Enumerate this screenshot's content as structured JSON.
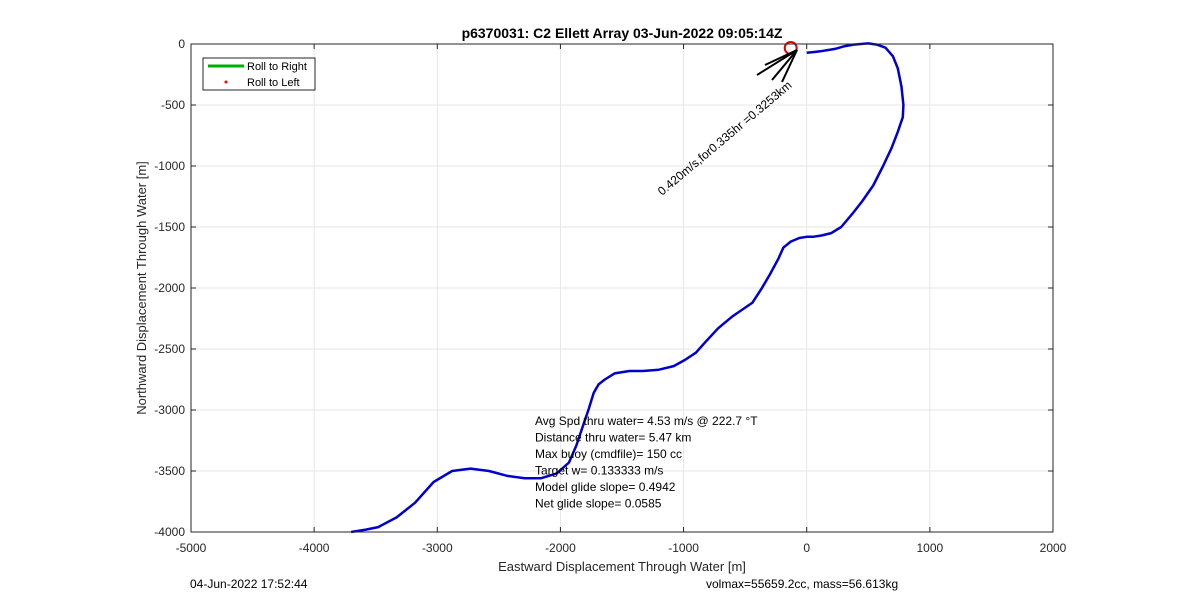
{
  "chart_data": {
    "type": "line",
    "title": "p6370031: C2 Ellett Array 03-Jun-2022 09:05:14Z",
    "xlabel": "Eastward Displacement Through Water [m]",
    "ylabel": "Northward Displacement Through Water [m]",
    "xlim": [
      -5000,
      2000
    ],
    "ylim": [
      -4000,
      0
    ],
    "xticks": [
      -5000,
      -4000,
      -3000,
      -2000,
      -1000,
      0,
      1000,
      2000
    ],
    "yticks": [
      0,
      -500,
      -1000,
      -1500,
      -2000,
      -2500,
      -3000,
      -3500,
      -4000
    ],
    "grid": true,
    "legend_position": "top-left",
    "legend": [
      {
        "label": "Roll to Right",
        "color": "#00b000",
        "marker": "line"
      },
      {
        "label": "Roll to Left",
        "color": "#ff0000",
        "marker": "dot"
      }
    ],
    "series": [
      {
        "color": "#0000cc",
        "x": [
          -3700,
          -3580,
          -3480,
          -3330,
          -3180,
          -3030,
          -2880,
          -2730,
          -2580,
          -2430,
          -2290,
          -2160,
          -2030,
          -1930,
          -1870,
          -1810,
          -1770,
          -1730,
          -1690,
          -1640,
          -1560,
          -1440,
          -1330,
          -1200,
          -1080,
          -990,
          -900,
          -820,
          -720,
          -600,
          -440,
          -370,
          -300,
          -230,
          -190,
          -130,
          -60,
          0,
          50,
          120,
          200,
          280,
          380,
          450,
          540,
          620,
          690,
          740,
          780,
          785,
          770,
          740,
          700,
          640,
          570,
          500,
          380,
          300,
          230,
          170,
          110,
          70,
          40,
          20,
          0
        ],
        "y": [
          -4000,
          -3980,
          -3960,
          -3880,
          -3760,
          -3590,
          -3500,
          -3480,
          -3500,
          -3540,
          -3560,
          -3560,
          -3520,
          -3430,
          -3290,
          -3110,
          -2990,
          -2860,
          -2790,
          -2750,
          -2700,
          -2680,
          -2680,
          -2670,
          -2640,
          -2590,
          -2530,
          -2440,
          -2330,
          -2230,
          -2120,
          -2010,
          -1890,
          -1760,
          -1670,
          -1620,
          -1590,
          -1580,
          -1580,
          -1570,
          -1550,
          -1500,
          -1380,
          -1290,
          -1160,
          -1000,
          -850,
          -720,
          -600,
          -500,
          -350,
          -200,
          -100,
          -30,
          -5,
          5,
          -5,
          -20,
          -40,
          -50,
          -60,
          -65,
          -68,
          -70,
          -72
        ]
      }
    ],
    "marker": {
      "x": -130,
      "y": -25,
      "color": "#dd0000",
      "shape": "circle"
    },
    "arrow_label": "0.420m/s,for0.335hr =0.3253km",
    "annotations": [
      "Avg Spd thru water=  4.53 m/s @ 222.7 °T",
      "Distance thru water=  5.47 km",
      "Max buoy (cmdfile)= 150 cc",
      "Target w= 0.133333 m/s",
      "Model glide slope= 0.4942",
      "Net glide slope= 0.0585"
    ]
  },
  "footer": {
    "date": "04-Jun-2022 17:52:44",
    "right": "volmax=55659.2cc, mass=56.613kg"
  }
}
